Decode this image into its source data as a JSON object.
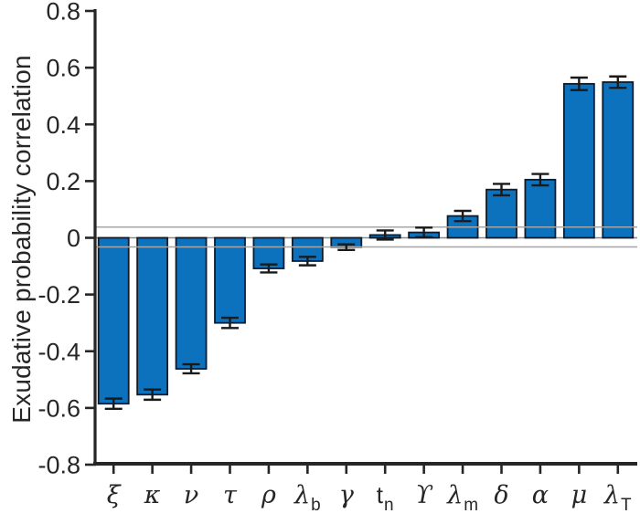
{
  "chart_data": {
    "type": "bar",
    "title": "",
    "xlabel": "",
    "ylabel": "Exudative probability correlation",
    "ylim": [
      -0.8,
      0.8
    ],
    "grid": false,
    "legend": null,
    "ytick_labels": [
      "0.8",
      "0.6",
      "0.4",
      "0.2",
      "0",
      "-0.2",
      "-0.4",
      "-0.6",
      "-0.8"
    ],
    "ytick_values": [
      0.8,
      0.6,
      0.4,
      0.2,
      0.0,
      -0.2,
      -0.4,
      -0.6,
      -0.8
    ],
    "categories": [
      {
        "glyph": "ξ",
        "sub": "",
        "greek": true
      },
      {
        "glyph": "κ",
        "sub": "",
        "greek": true
      },
      {
        "glyph": "ν",
        "sub": "",
        "greek": true
      },
      {
        "glyph": "τ",
        "sub": "",
        "greek": true
      },
      {
        "glyph": "ρ",
        "sub": "",
        "greek": true
      },
      {
        "glyph": "λ",
        "sub": "b",
        "greek": true
      },
      {
        "glyph": "γ",
        "sub": "",
        "greek": true
      },
      {
        "glyph": "t",
        "sub": "n",
        "greek": false
      },
      {
        "glyph": "ϒ",
        "sub": "",
        "greek": true
      },
      {
        "glyph": "λ",
        "sub": "m",
        "greek": true
      },
      {
        "glyph": "δ",
        "sub": "",
        "greek": true
      },
      {
        "glyph": "α",
        "sub": "",
        "greek": true
      },
      {
        "glyph": "μ",
        "sub": "",
        "greek": true
      },
      {
        "glyph": "λ",
        "sub": "T",
        "greek": true
      }
    ],
    "values": [
      -0.585,
      -0.553,
      -0.462,
      -0.3,
      -0.108,
      -0.082,
      -0.033,
      0.01,
      0.019,
      0.077,
      0.17,
      0.205,
      0.543,
      0.549
    ],
    "errors": [
      0.018,
      0.018,
      0.016,
      0.018,
      0.014,
      0.015,
      0.01,
      0.016,
      0.017,
      0.018,
      0.02,
      0.02,
      0.022,
      0.02
    ],
    "threshold_lines": {
      "upper": 0.038,
      "lower": -0.032
    },
    "colors": {
      "bar_fill": "#0d72bd",
      "bar_edge": "#0d1b2a",
      "error_bar": "#1a1a1a",
      "threshold_line": "#a6a6a6",
      "baseline": "#8a8a8a",
      "axis": "#262626",
      "background": "#ffffff"
    }
  }
}
